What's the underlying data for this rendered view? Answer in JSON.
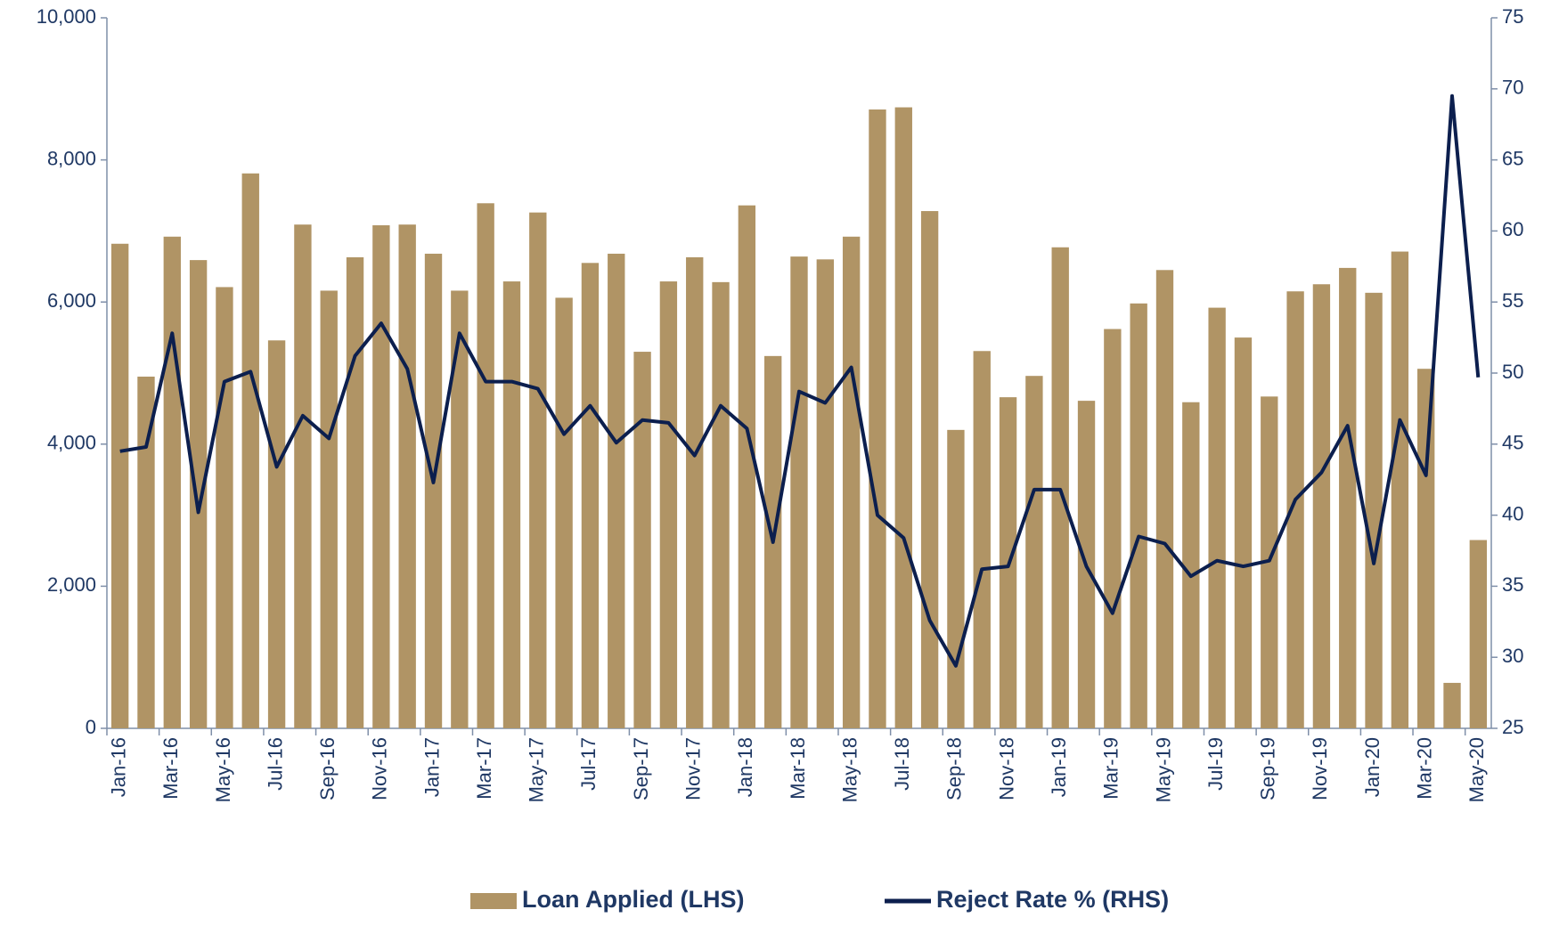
{
  "chart_data": {
    "type": "bar_line",
    "categories": [
      "Jan-16",
      null,
      "Mar-16",
      null,
      "May-16",
      null,
      "Jul-16",
      null,
      "Sep-16",
      null,
      "Nov-16",
      null,
      "Jan-17",
      null,
      "Mar-17",
      null,
      "May-17",
      null,
      "Jul-17",
      null,
      "Sep-17",
      null,
      "Nov-17",
      null,
      "Jan-18",
      null,
      "Mar-18",
      null,
      "May-18",
      null,
      "Jul-18",
      null,
      "Sep-18",
      null,
      "Nov-18",
      null,
      "Jan-19",
      null,
      "Mar-19",
      null,
      "May-19",
      null,
      "Jul-19",
      null,
      "Sep-19",
      null,
      "Nov-19",
      null,
      "Jan-20",
      null,
      "Mar-20",
      null,
      "May-20"
    ],
    "series": [
      {
        "name": "Loan Applied (LHS)",
        "type": "bar",
        "color": "#b09465",
        "axis": "y",
        "values": [
          6820,
          4950,
          6920,
          6590,
          6210,
          7810,
          5460,
          7090,
          6160,
          6630,
          7080,
          7090,
          6680,
          6160,
          7390,
          6290,
          7260,
          6060,
          6550,
          6680,
          5300,
          6290,
          6630,
          6280,
          7360,
          5240,
          6640,
          6600,
          6920,
          8710,
          8740,
          7280,
          4200,
          5310,
          4660,
          4960,
          6770,
          4610,
          5620,
          5980,
          6450,
          4590,
          5920,
          5500,
          4670,
          6150,
          6250,
          6480,
          6130,
          6710,
          5060,
          640,
          2650
        ]
      },
      {
        "name": "Reject Rate % (RHS)",
        "type": "line",
        "color": "#0c1f4e",
        "axis": "y2",
        "values": [
          44.5,
          44.8,
          52.8,
          40.2,
          49.4,
          50.1,
          43.4,
          47.0,
          45.4,
          51.2,
          53.5,
          50.3,
          42.3,
          52.8,
          49.4,
          49.4,
          48.9,
          45.7,
          47.7,
          45.1,
          46.7,
          46.5,
          44.2,
          47.7,
          46.1,
          38.1,
          48.7,
          47.9,
          50.4,
          40.0,
          38.4,
          32.6,
          29.4,
          36.2,
          36.4,
          41.8,
          41.8,
          36.4,
          33.1,
          38.5,
          38.0,
          35.7,
          36.8,
          36.4,
          36.8,
          41.1,
          43.0,
          46.3,
          36.6,
          46.7,
          42.8,
          69.5,
          49.7
        ]
      }
    ],
    "ylim": [
      0,
      10000
    ],
    "yticks": [
      0,
      {
        "value": 2000,
        "label": "2,000"
      },
      {
        "value": 4000,
        "label": "4,000"
      },
      {
        "value": 6000,
        "label": "6,000"
      },
      {
        "value": 8000,
        "label": "8,000"
      },
      {
        "value": 10000,
        "label": "10,000"
      }
    ],
    "y2lim": [
      25,
      75
    ],
    "y2ticks": [
      25,
      30,
      35,
      40,
      45,
      50,
      55,
      60,
      65,
      70,
      75
    ],
    "legend": "bottom"
  }
}
